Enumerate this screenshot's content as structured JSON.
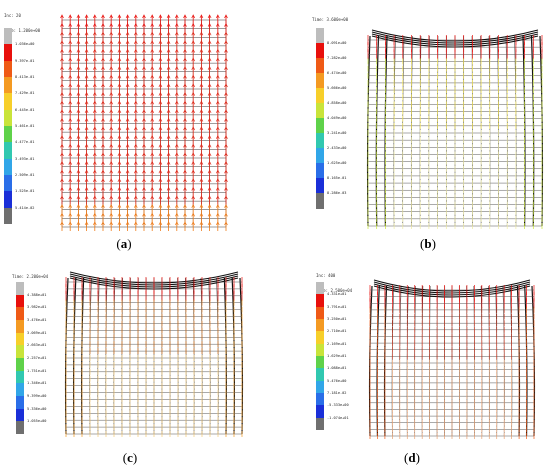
{
  "colors": [
    "#bdbdbd",
    "#e8100c",
    "#ef5a16",
    "#f49a22",
    "#f7cf2a",
    "#c9e43a",
    "#5fd24a",
    "#31c8b0",
    "#31a6e8",
    "#2a6ee8",
    "#1a2fd8",
    "#6f6f6f"
  ],
  "panels": [
    {
      "id": "a",
      "caption_letter": "a",
      "header": [
        "Inc: 20",
        "Time: 1.200e+00"
      ],
      "levels": [
        "1.036e+00",
        "9.397e-01",
        "8.413e-01",
        "7.429e-01",
        "6.445e-01",
        "5.461e-01",
        "4.477e-01",
        "3.493e-01",
        "2.509e-01",
        "1.525e-01",
        "5.414e-02"
      ]
    },
    {
      "id": "b",
      "caption_letter": "b",
      "header": [
        "",
        "Time: 3.600e+00"
      ],
      "levels": [
        "8.091e+00",
        "7.282e+00",
        "6.474e+00",
        "5.666e+00",
        "4.858e+00",
        "4.049e+00",
        "3.241e+00",
        "2.433e+00",
        "1.625e+00",
        "8.165e-01",
        "8.286e-03"
      ]
    },
    {
      "id": "c",
      "caption_letter": "c",
      "header": [
        "",
        "Time: 2.200e+04"
      ],
      "levels": [
        "4.388e+01",
        "3.982e+01",
        "3.476e+01",
        "3.069e+01",
        "2.663e+01",
        "2.257e+01",
        "1.751e+01",
        "1.346e+01",
        "9.399e+00",
        "5.336e+00",
        "1.055e+00"
      ]
    },
    {
      "id": "d",
      "caption_letter": "d",
      "header": [
        "Inc: 400",
        "Time: 2.500e+04"
      ],
      "levels": [
        "4.331e+01",
        "3.791e+01",
        "3.250e+01",
        "2.710e+01",
        "2.169e+01",
        "1.629e+01",
        "1.088e+01",
        "5.476e+00",
        "7.181e-02",
        "-5.333e+00",
        "-1.074e+01"
      ]
    }
  ]
}
